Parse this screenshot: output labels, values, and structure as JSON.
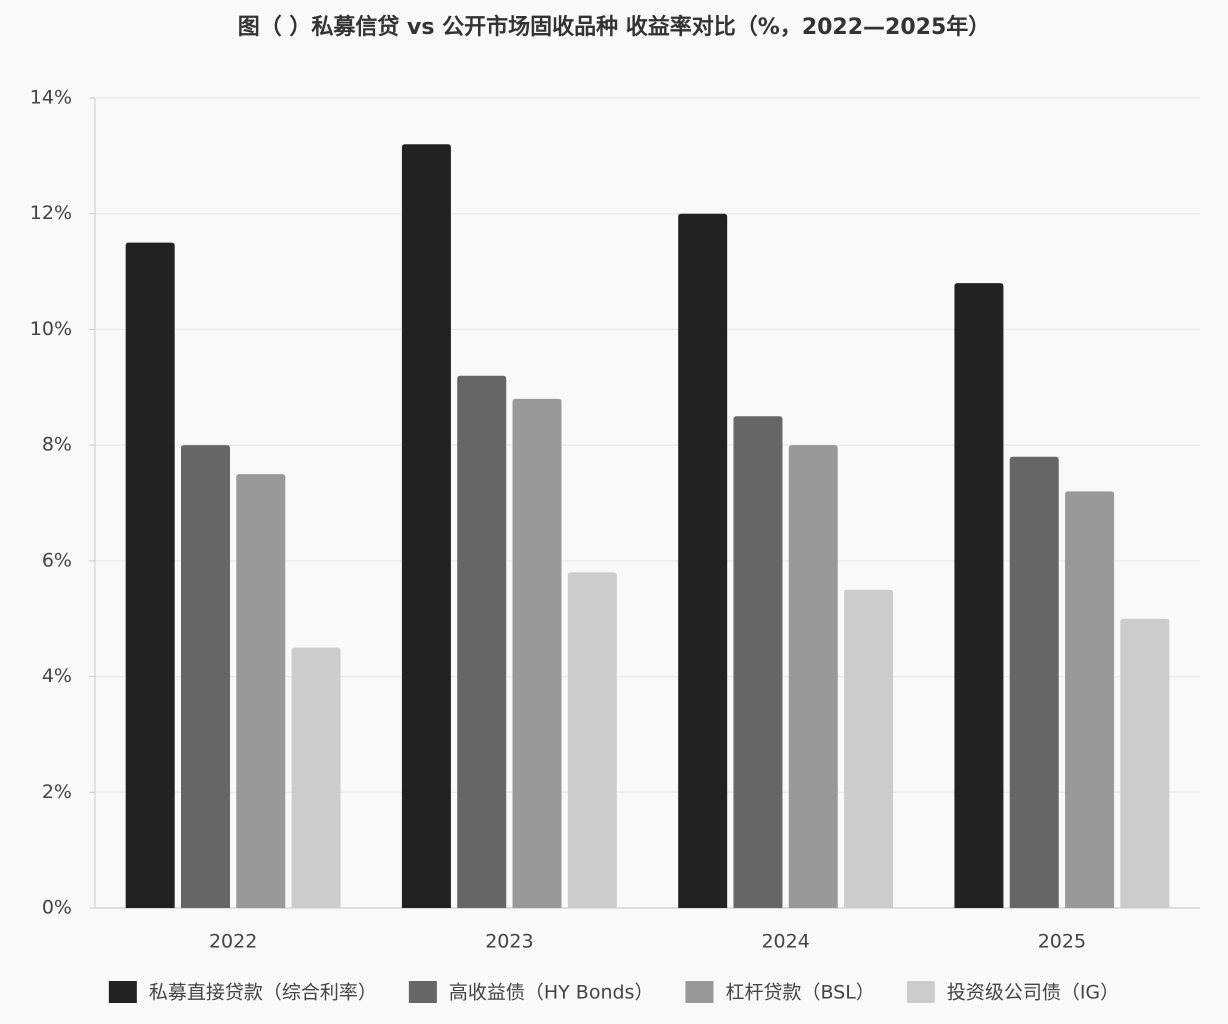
{
  "chart_data": {
    "type": "bar",
    "title": "图（ ）私募信贷 vs 公开市场固收品种 收益率对比（%，2022—2025年）",
    "categories": [
      "2022",
      "2023",
      "2024",
      "2025"
    ],
    "series": [
      {
        "name": "私募直接贷款（综合利率）",
        "color": "#222222",
        "values": [
          11.5,
          13.2,
          12.0,
          10.8
        ]
      },
      {
        "name": "高收益债（HY Bonds）",
        "color": "#666666",
        "values": [
          8.0,
          9.2,
          8.5,
          7.8
        ]
      },
      {
        "name": "杠杆贷款（BSL）",
        "color": "#999999",
        "values": [
          7.5,
          8.8,
          8.0,
          7.2
        ]
      },
      {
        "name": "投资级公司债（IG）",
        "color": "#cccccc",
        "values": [
          4.5,
          5.8,
          5.5,
          5.0
        ]
      }
    ],
    "ylim": [
      0,
      14
    ],
    "yticks": [
      {
        "value": 0,
        "label": "0%"
      },
      {
        "value": 2,
        "label": "2%"
      },
      {
        "value": 4,
        "label": "4%"
      },
      {
        "value": 6,
        "label": "6%"
      },
      {
        "value": 8,
        "label": "8%"
      },
      {
        "value": 10,
        "label": "10%"
      },
      {
        "value": 12,
        "label": "12%"
      },
      {
        "value": 14,
        "label": "14%"
      }
    ],
    "grid": true
  }
}
